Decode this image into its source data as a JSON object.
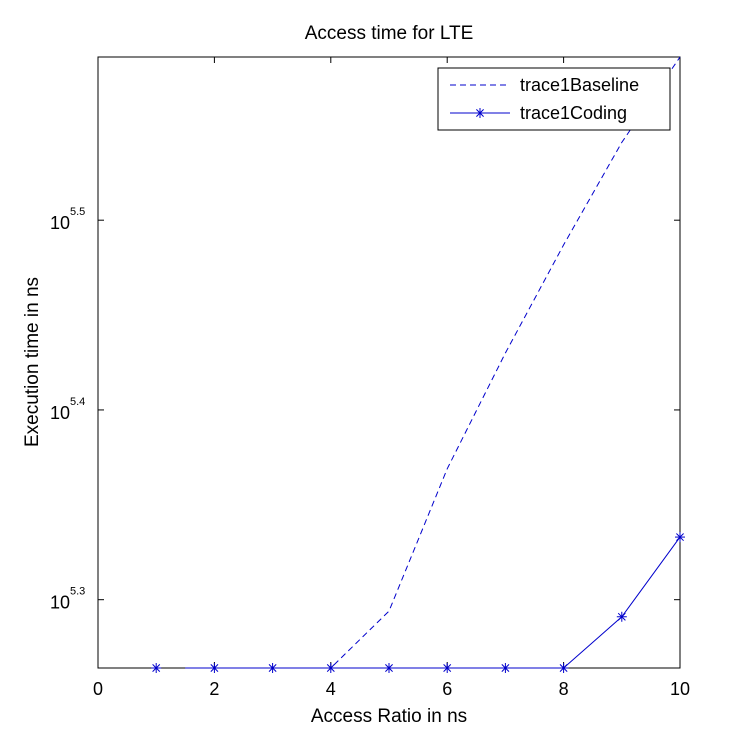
{
  "chart_data": {
    "type": "line",
    "title": "Access time for LTE",
    "xlabel": "Access Ratio in ns",
    "ylabel": "Execution time in ns",
    "xlim": [
      0,
      10
    ],
    "yscale": "log",
    "ylim_log10": [
      5.264,
      5.586
    ],
    "grid": false,
    "legend_position": "top-right",
    "x_ticks": [
      0,
      2,
      4,
      6,
      8,
      10
    ],
    "x_tick_labels": [
      "0",
      "2",
      "4",
      "6",
      "8",
      "10"
    ],
    "y_ticks_log10": [
      5.3,
      5.4,
      5.5
    ],
    "y_tick_base": "10",
    "y_tick_exponents": [
      "5.3",
      "5.4",
      "5.5"
    ],
    "series": [
      {
        "name": "trace1Baseline",
        "style": "dashed",
        "marker": "none",
        "color": "#0000cc",
        "x": [
          1.5,
          2,
          3,
          4,
          5,
          6,
          7,
          8,
          9,
          10
        ],
        "y_log10": [
          5.264,
          5.264,
          5.264,
          5.264,
          5.294,
          5.369,
          5.43,
          5.487,
          5.541,
          5.586
        ]
      },
      {
        "name": "trace1Coding",
        "style": "solid",
        "marker": "asterisk",
        "color": "#0000cc",
        "x": [
          1,
          2,
          3,
          4,
          5,
          6,
          7,
          8,
          9,
          10
        ],
        "y_log10": [
          5.264,
          5.264,
          5.264,
          5.264,
          5.264,
          5.264,
          5.264,
          5.264,
          5.291,
          5.333
        ],
        "line_x": [
          1.5,
          2,
          3,
          4,
          5,
          6,
          7,
          8,
          9,
          10
        ],
        "line_y_log10": [
          5.264,
          5.264,
          5.264,
          5.264,
          5.264,
          5.264,
          5.264,
          5.264,
          5.291,
          5.333
        ]
      }
    ]
  }
}
